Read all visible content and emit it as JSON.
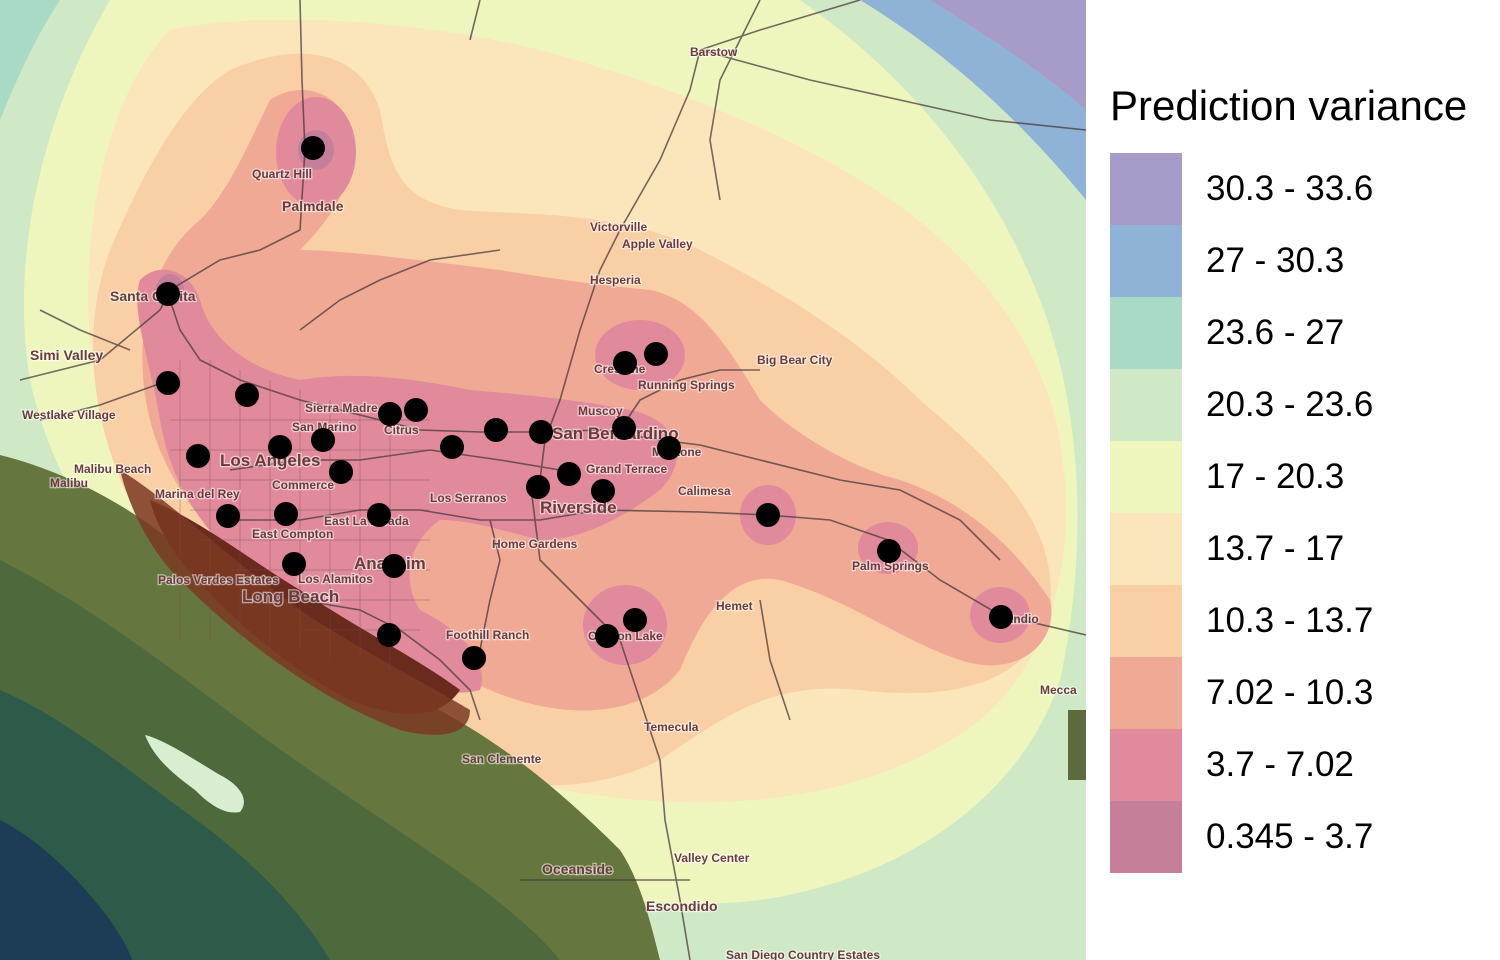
{
  "legend": {
    "title": "Prediction variance",
    "classes": [
      {
        "label": "30.3 - 33.6",
        "color": "#a79cc8"
      },
      {
        "label": "27 - 30.3",
        "color": "#8fb3d6"
      },
      {
        "label": "23.6 - 27",
        "color": "#a8dac5"
      },
      {
        "label": "20.3 - 23.6",
        "color": "#cfe9c6"
      },
      {
        "label": "17 - 20.3",
        "color": "#eef6bd"
      },
      {
        "label": "13.7 - 17",
        "color": "#fbe6bc"
      },
      {
        "label": "10.3 - 13.7",
        "color": "#f9cfa6"
      },
      {
        "label": "7.02 - 10.3",
        "color": "#f0a995"
      },
      {
        "label": "3.7 - 7.02",
        "color": "#e08a9c"
      },
      {
        "label": "0.345 - 3.7",
        "color": "#c57f9b"
      }
    ]
  },
  "map": {
    "places": [
      {
        "name": "Barstow",
        "size": "s"
      },
      {
        "name": "Quartz Hill",
        "size": "s"
      },
      {
        "name": "Palmdale",
        "size": "m"
      },
      {
        "name": "Victorville",
        "size": "s"
      },
      {
        "name": "Apple Valley",
        "size": "s"
      },
      {
        "name": "Hesperia",
        "size": "s"
      },
      {
        "name": "Santa Clarita",
        "size": "m"
      },
      {
        "name": "Simi Valley",
        "size": "m"
      },
      {
        "name": "Westlake Village",
        "size": "s"
      },
      {
        "name": "Big Bear City",
        "size": "s"
      },
      {
        "name": "Crestline",
        "size": "s"
      },
      {
        "name": "Running Springs",
        "size": "s"
      },
      {
        "name": "Sierra Madre",
        "size": "s"
      },
      {
        "name": "San Marino",
        "size": "s"
      },
      {
        "name": "Citrus",
        "size": "s"
      },
      {
        "name": "Muscoy",
        "size": "s"
      },
      {
        "name": "San Bernardino",
        "size": "l"
      },
      {
        "name": "Mentone",
        "size": "s"
      },
      {
        "name": "Los Angeles",
        "size": "l"
      },
      {
        "name": "Malibu Beach",
        "size": "s"
      },
      {
        "name": "Malibu",
        "size": "s"
      },
      {
        "name": "Marina del Rey",
        "size": "s"
      },
      {
        "name": "Commerce",
        "size": "s"
      },
      {
        "name": "Grand Terrace",
        "size": "s"
      },
      {
        "name": "Calimesa",
        "size": "s"
      },
      {
        "name": "Los Serranos",
        "size": "s"
      },
      {
        "name": "Riverside",
        "size": "l"
      },
      {
        "name": "East La Mirada",
        "size": "s"
      },
      {
        "name": "East Compton",
        "size": "s"
      },
      {
        "name": "Home Gardens",
        "size": "s"
      },
      {
        "name": "Palm Springs",
        "size": "s"
      },
      {
        "name": "Anaheim",
        "size": "l"
      },
      {
        "name": "Palos Verdes Estates",
        "size": "s"
      },
      {
        "name": "Los Alamitos",
        "size": "s"
      },
      {
        "name": "Long Beach",
        "size": "l"
      },
      {
        "name": "Hemet",
        "size": "s"
      },
      {
        "name": "Foothill Ranch",
        "size": "s"
      },
      {
        "name": "Canyon Lake",
        "size": "s"
      },
      {
        "name": "Indio",
        "size": "s"
      },
      {
        "name": "Mecca",
        "size": "s"
      },
      {
        "name": "Temecula",
        "size": "s"
      },
      {
        "name": "San Clemente",
        "size": "s"
      },
      {
        "name": "Valley Center",
        "size": "s"
      },
      {
        "name": "Oceanside",
        "size": "m"
      },
      {
        "name": "Escondido",
        "size": "m"
      },
      {
        "name": "San Diego Country Estates",
        "size": "s"
      }
    ]
  }
}
